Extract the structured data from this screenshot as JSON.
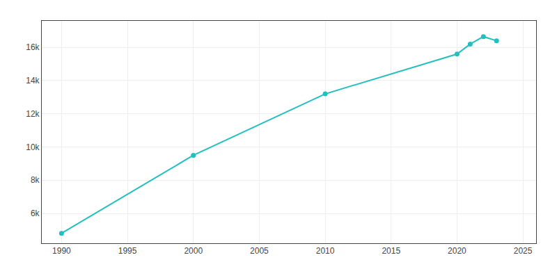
{
  "chart_data": {
    "type": "line",
    "x": [
      1990,
      2000,
      2010,
      2020,
      2021,
      2022,
      2023
    ],
    "values": [
      4800,
      9500,
      13200,
      15600,
      16200,
      16650,
      16400
    ],
    "color": "#22BFBF",
    "marker": "circle",
    "xlim": [
      1988.5,
      2026
    ],
    "ylim": [
      4200,
      17600
    ],
    "xticks": [
      1990,
      1995,
      2000,
      2005,
      2010,
      2015,
      2020,
      2025
    ],
    "yticks": [
      {
        "value": 6000,
        "label": "6k"
      },
      {
        "value": 8000,
        "label": "8k"
      },
      {
        "value": 10000,
        "label": "10k"
      },
      {
        "value": 12000,
        "label": "12k"
      },
      {
        "value": 14000,
        "label": "14k"
      },
      {
        "value": 16000,
        "label": "16k"
      }
    ],
    "grid": true
  }
}
